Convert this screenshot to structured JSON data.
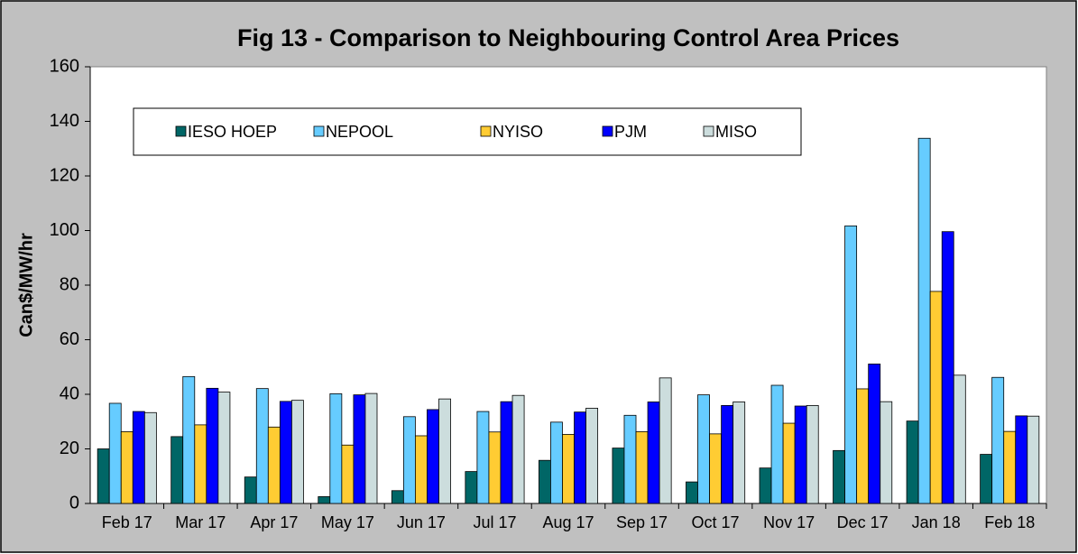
{
  "chart_data": {
    "type": "bar",
    "title": "Fig  13 - Comparison to Neighbouring Control Area Prices",
    "y_label": "Can$/MW/hr",
    "categories": [
      "Feb 17",
      "Mar 17",
      "Apr 17",
      "May 17",
      "Jun 17",
      "Jul 17",
      "Aug 17",
      "Sep 17",
      "Oct 17",
      "Nov 17",
      "Dec 17",
      "Jan 18",
      "Feb 18"
    ],
    "series": [
      {
        "name": "IESO HOEP",
        "color": "#006666",
        "values": [
          20,
          24.5,
          9.7,
          2.5,
          4.7,
          11.7,
          15.8,
          20.3,
          7.9,
          13.0,
          19.4,
          30.2,
          18.0
        ]
      },
      {
        "name": "NEPOOL",
        "color": "#66ccff",
        "values": [
          36.7,
          46.5,
          42.1,
          40.2,
          31.8,
          33.7,
          29.8,
          32.3,
          39.8,
          43.3,
          101.7,
          133.8,
          46.2
        ]
      },
      {
        "name": "NYISO",
        "color": "#ffcc33",
        "values": [
          26.3,
          28.8,
          28.0,
          21.4,
          24.8,
          26.2,
          25.3,
          26.3,
          25.5,
          29.4,
          42.0,
          77.7,
          26.4
        ]
      },
      {
        "name": "PJM",
        "color": "#0000ff",
        "values": [
          33.7,
          42.2,
          37.4,
          39.8,
          34.4,
          37.3,
          33.5,
          37.2,
          35.9,
          35.7,
          51.1,
          99.6,
          32.1
        ]
      },
      {
        "name": "MISO",
        "color": "#ccdddd",
        "values": [
          33.3,
          40.8,
          37.8,
          40.3,
          38.3,
          39.6,
          34.9,
          46.0,
          37.2,
          35.9,
          37.3,
          47.0,
          32.0
        ]
      }
    ],
    "ylim": [
      0,
      160
    ],
    "yticks": [
      0,
      20,
      40,
      60,
      80,
      100,
      120,
      140,
      160
    ]
  }
}
